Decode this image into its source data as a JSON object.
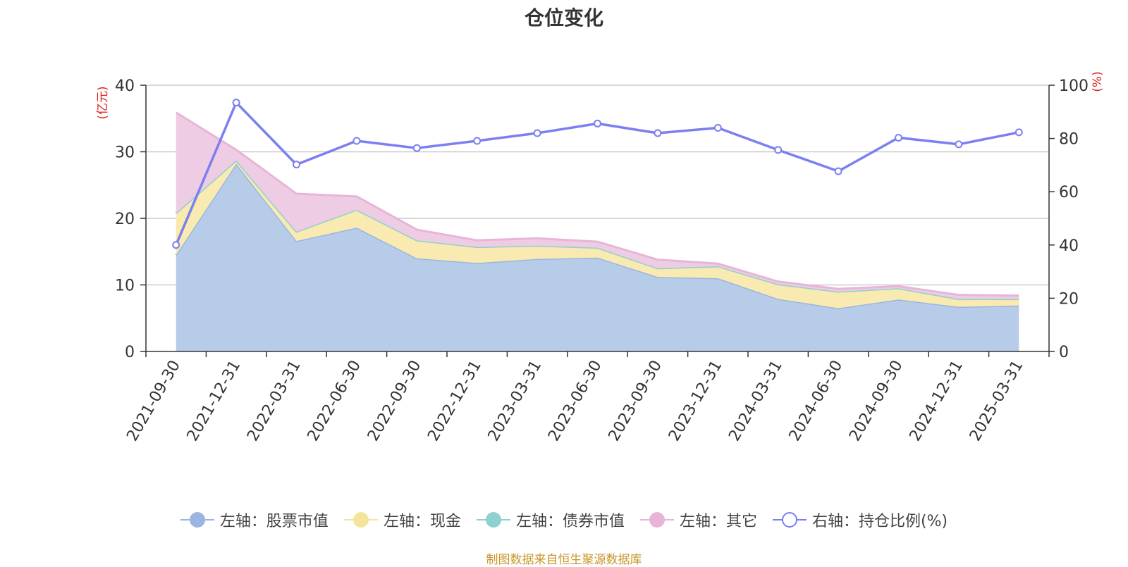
{
  "title": "仓位变化",
  "source": "制图数据来自恒生聚源数据库",
  "chart_data": {
    "type": "area",
    "title": "仓位变化",
    "categories": [
      "2021-09-30",
      "2021-12-31",
      "2022-03-31",
      "2022-06-30",
      "2022-09-30",
      "2022-12-31",
      "2023-03-31",
      "2023-06-30",
      "2023-09-30",
      "2023-12-31",
      "2024-03-31",
      "2024-06-30",
      "2024-09-30",
      "2024-12-31",
      "2025-03-31"
    ],
    "left_axis": {
      "label": "(亿元)",
      "ylim": [
        0,
        40
      ],
      "ticks": [
        "0",
        "10",
        "20",
        "30",
        "40"
      ]
    },
    "right_axis": {
      "label": "(%)",
      "ylim": [
        0,
        100
      ],
      "ticks": [
        "0",
        "20",
        "40",
        "60",
        "80",
        "100"
      ]
    },
    "stacked_series": [
      {
        "name": "左轴：股票市值",
        "color": "#9ab6e0",
        "fill": "#b7cce9",
        "values": [
          14.5,
          28.2,
          16.6,
          18.6,
          14.0,
          13.3,
          13.9,
          14.1,
          11.2,
          11.0,
          7.9,
          6.5,
          7.8,
          6.7,
          6.9
        ]
      },
      {
        "name": "左轴：现金",
        "color": "#f5e59c",
        "fill": "#f8eab0",
        "values": [
          6.3,
          0.5,
          1.4,
          2.7,
          2.7,
          2.4,
          2.0,
          1.5,
          1.3,
          1.8,
          2.2,
          2.5,
          1.7,
          1.1,
          0.9
        ]
      },
      {
        "name": "左轴：债券市值",
        "color": "#8fd0d0",
        "fill": "#a8dcdc",
        "values": [
          0,
          0,
          0,
          0,
          0,
          0,
          0,
          0,
          0,
          0,
          0,
          0,
          0,
          0.1,
          0.1
        ]
      },
      {
        "name": "左轴：其它",
        "color": "#e7b5d8",
        "fill": "#eecde4",
        "values": [
          15.1,
          1.6,
          5.7,
          2.0,
          1.6,
          1.0,
          1.1,
          0.9,
          1.3,
          0.4,
          0.4,
          0.4,
          0.3,
          0.6,
          0.5
        ]
      }
    ],
    "line_series": {
      "name": "右轴：持仓比例(%)",
      "color": "#7b7ff0",
      "values": [
        40,
        93.5,
        70.2,
        79.1,
        76.4,
        79.1,
        82.0,
        85.6,
        82.0,
        84.0,
        75.7,
        67.7,
        80.3,
        77.8,
        82.3
      ]
    },
    "grid": true,
    "legend_position": "bottom"
  },
  "legend": [
    {
      "label": "左轴：股票市值",
      "color": "#9ab6e0",
      "hollow": false
    },
    {
      "label": "左轴：现金",
      "color": "#f5e59c",
      "hollow": false
    },
    {
      "label": "左轴：债券市值",
      "color": "#8fd0d0",
      "hollow": false
    },
    {
      "label": "左轴：其它",
      "color": "#e7b5d8",
      "hollow": false
    },
    {
      "label": "右轴：持仓比例(%)",
      "color": "#7b7ff0",
      "hollow": true
    }
  ]
}
